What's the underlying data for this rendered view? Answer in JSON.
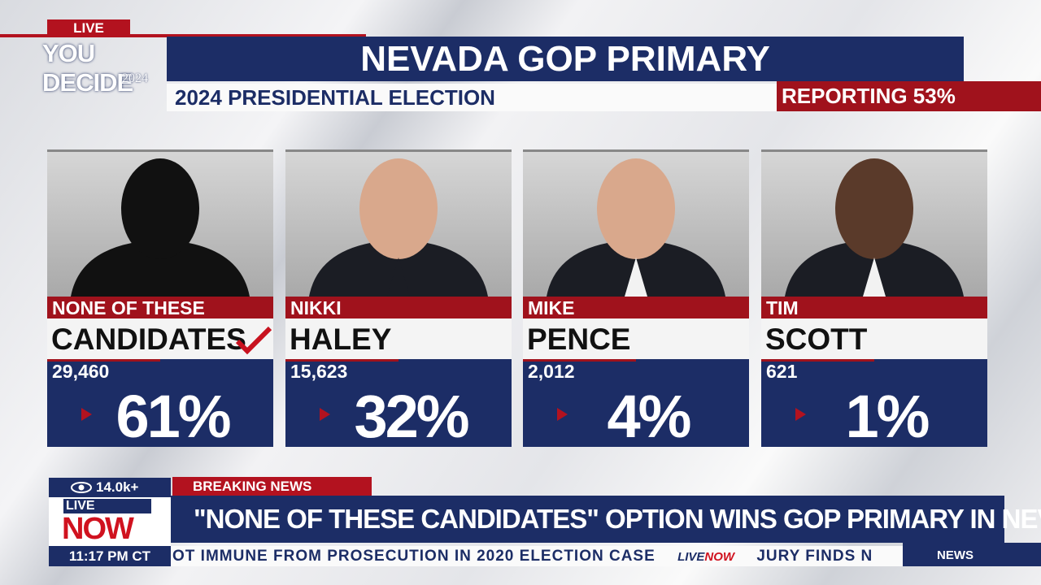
{
  "logo": {
    "live": "LIVE",
    "brand": "YOU DECIDE",
    "year": "2024"
  },
  "header": {
    "title": "NEVADA GOP PRIMARY",
    "subtitle": "2024 PRESIDENTIAL ELECTION",
    "reporting": "REPORTING 53%"
  },
  "candidates": [
    {
      "first": "NONE OF THESE",
      "last": "CANDIDATES",
      "votes": "29,460",
      "percent": "61%",
      "winner": true,
      "photo": "silhouette"
    },
    {
      "first": "NIKKI",
      "last": "HALEY",
      "votes": "15,623",
      "percent": "32%",
      "winner": false,
      "photo": "person"
    },
    {
      "first": "MIKE",
      "last": "PENCE",
      "votes": "2,012",
      "percent": "4%",
      "winner": false,
      "photo": "person"
    },
    {
      "first": "TIM",
      "last": "SCOTT",
      "votes": "621",
      "percent": "1%",
      "winner": false,
      "photo": "person"
    }
  ],
  "lower_third": {
    "viewers": "14.0k+",
    "label": "BREAKING NEWS",
    "headline": "\"NONE OF THESE CANDIDATES\" OPTION WINS GOP PRIMARY IN NEVADA",
    "live": "LIVE",
    "now": "NOW",
    "time": "11:17 PM CT",
    "ticker": [
      "OT IMMUNE FROM PROSECUTION IN 2020 ELECTION CASE",
      "JURY FINDS N"
    ],
    "ticker_logo_live": "LIVE",
    "ticker_logo_now": "NOW",
    "section": "NEWS"
  }
}
